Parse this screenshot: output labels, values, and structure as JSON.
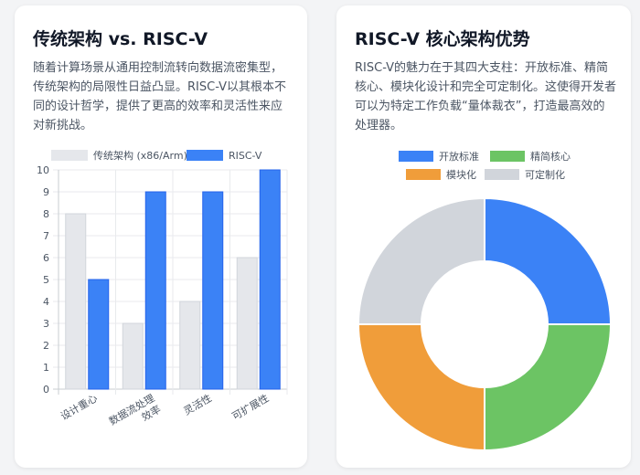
{
  "left_card": {
    "title": "传统架构 vs. RISC-V",
    "description": "随着计算场景从通用控制流转向数据流密集型，传统架构的局限性日益凸显。RISC-V以其根本不同的设计哲学，提供了更高的效率和灵活性来应对新挑战。"
  },
  "right_card": {
    "title": "RISC-V 核心架构优势",
    "description": "RISC-V的魅力在于其四大支柱：开放标准、精简核心、模块化设计和完全可定制化。这使得开发者可以为特定工作负载“量体裁衣”，打造最高效的处理器。"
  },
  "chart_data": [
    {
      "type": "bar",
      "categories": [
        "设计重心",
        "数据流处理效率",
        "灵活性",
        "可扩展性"
      ],
      "category_lines": [
        [
          "设计重心"
        ],
        [
          "数据流处理",
          "效率"
        ],
        [
          "灵活性"
        ],
        [
          "可扩展性"
        ]
      ],
      "series": [
        {
          "name": "传统架构 (x86/Arm)",
          "values": [
            8,
            3,
            4,
            6
          ],
          "color": "#e5e7eb",
          "border": "#d1d5db"
        },
        {
          "name": "RISC-V",
          "values": [
            5,
            9,
            9,
            10
          ],
          "color": "#3b82f6",
          "border": "#2563eb"
        }
      ],
      "ylim": [
        0,
        10
      ],
      "yticks": [
        "0",
        "1",
        "2",
        "3",
        "4",
        "5",
        "6",
        "7",
        "8",
        "9",
        "10"
      ],
      "grid": true,
      "legend": "top"
    },
    {
      "type": "pie",
      "variant": "doughnut",
      "labels": [
        "开放标准",
        "精简核心",
        "模块化",
        "可定制化"
      ],
      "values": [
        25,
        25,
        25,
        25
      ],
      "colors": [
        "#3b82f6",
        "#6cc464",
        "#f09d3a",
        "#d1d5db"
      ],
      "legend": "top"
    }
  ]
}
